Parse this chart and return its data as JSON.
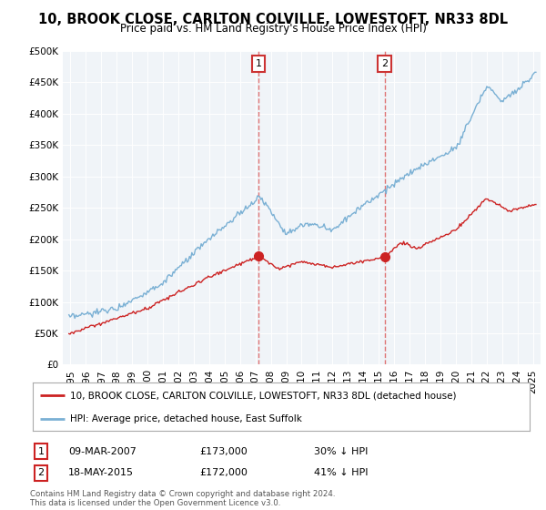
{
  "title": "10, BROOK CLOSE, CARLTON COLVILLE, LOWESTOFT, NR33 8DL",
  "subtitle": "Price paid vs. HM Land Registry's House Price Index (HPI)",
  "property_label": "10, BROOK CLOSE, CARLTON COLVILLE, LOWESTOFT, NR33 8DL (detached house)",
  "hpi_label": "HPI: Average price, detached house, East Suffolk",
  "transaction1_date": "09-MAR-2007",
  "transaction1_price": 173000,
  "transaction1_pct": "30% ↓ HPI",
  "transaction2_date": "18-MAY-2015",
  "transaction2_price": 172000,
  "transaction2_pct": "41% ↓ HPI",
  "t1_x": 2007.19,
  "t2_x": 2015.38,
  "hpi_color": "#7ab0d4",
  "property_color": "#cc2222",
  "plot_bg_color": "#f0f4f8",
  "footer": "Contains HM Land Registry data © Crown copyright and database right 2024.\nThis data is licensed under the Open Government Licence v3.0.",
  "ylim": [
    0,
    500000
  ],
  "yticks": [
    0,
    50000,
    100000,
    150000,
    200000,
    250000,
    300000,
    350000,
    400000,
    450000,
    500000
  ],
  "xlim": [
    1994.5,
    2025.5
  ],
  "xticks": [
    1995,
    1996,
    1997,
    1998,
    1999,
    2000,
    2001,
    2002,
    2003,
    2004,
    2005,
    2006,
    2007,
    2008,
    2009,
    2010,
    2011,
    2012,
    2013,
    2014,
    2015,
    2016,
    2017,
    2018,
    2019,
    2020,
    2021,
    2022,
    2023,
    2024,
    2025
  ]
}
